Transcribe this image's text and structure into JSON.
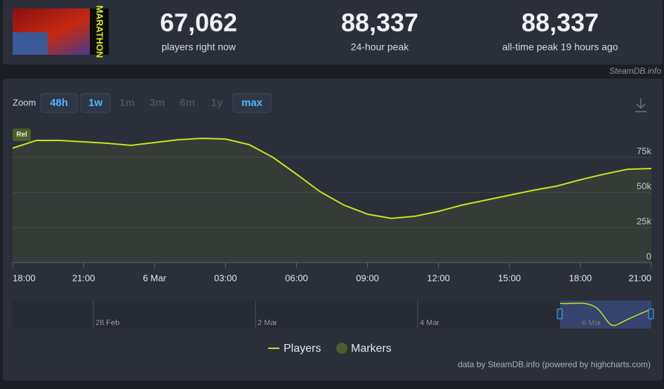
{
  "header": {
    "logo_text": "MARATHON",
    "stats": [
      {
        "value": "67,062",
        "label": "players right now"
      },
      {
        "value": "88,337",
        "label": "24-hour peak"
      },
      {
        "value": "88,337",
        "label": "all-time peak 19 hours ago"
      }
    ],
    "source": "SteamDB.info"
  },
  "zoom": {
    "label": "Zoom",
    "buttons": [
      {
        "text": "48h",
        "active": true
      },
      {
        "text": "1w",
        "active": true
      },
      {
        "text": "1m",
        "active": false
      },
      {
        "text": "3m",
        "active": false
      },
      {
        "text": "6m",
        "active": false
      },
      {
        "text": "1y",
        "active": false
      },
      {
        "text": "max",
        "active": true
      }
    ]
  },
  "chart_data": {
    "type": "line",
    "categories": [
      "18:00",
      null,
      null,
      "21:00",
      null,
      null,
      "6 Mar",
      null,
      null,
      "03:00",
      null,
      null,
      "06:00",
      null,
      null,
      "09:00",
      null,
      null,
      "12:00",
      null,
      null,
      "15:00",
      null,
      null,
      "18:00",
      null,
      null,
      "21:00"
    ],
    "series": [
      {
        "name": "Players",
        "color": "#c3e61f",
        "values": [
          81500,
          87000,
          87000,
          86000,
          85000,
          83500,
          85500,
          87500,
          88500,
          88000,
          84000,
          75000,
          63000,
          50500,
          41000,
          34500,
          31500,
          33000,
          36500,
          41000,
          44500,
          48000,
          51500,
          54500,
          59000,
          63000,
          66500,
          67000
        ]
      }
    ],
    "markers": {
      "name": "Markers",
      "color": "#4b5e2e",
      "labels": [
        "Rel"
      ]
    },
    "ylim": [
      0,
      100000
    ],
    "yticks": [
      {
        "value": 0,
        "label": "0"
      },
      {
        "value": 25000,
        "label": "25k"
      },
      {
        "value": 50000,
        "label": "50k"
      },
      {
        "value": 75000,
        "label": "75k"
      }
    ],
    "grid": true,
    "navigator": {
      "labels": [
        "28 Feb",
        "2 Mar",
        "4 Mar",
        "6 Mar"
      ]
    },
    "credits": "data by SteamDB.info (powered by highcharts.com)"
  }
}
